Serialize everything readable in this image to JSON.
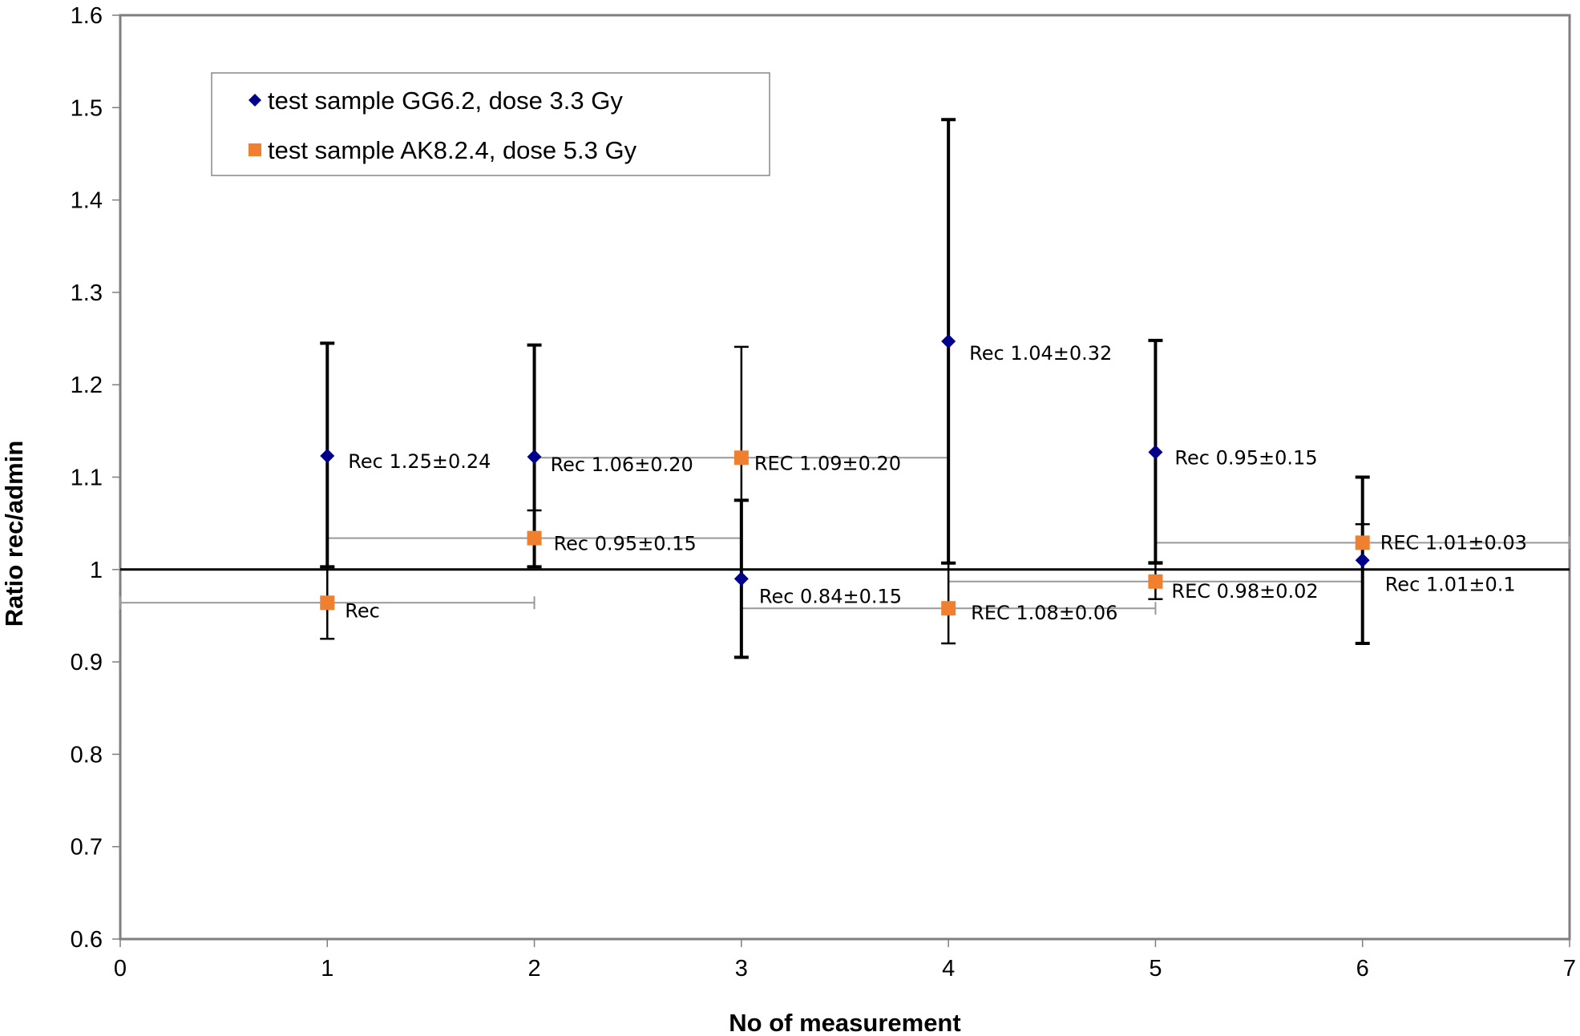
{
  "chart_data": {
    "type": "scatter",
    "title": "",
    "xlabel": "No of measurement",
    "ylabel": "Ratio rec/admin",
    "xlim": [
      0,
      7
    ],
    "ylim": [
      0.6,
      1.6
    ],
    "xticks": [
      "0",
      "1",
      "2",
      "3",
      "4",
      "5",
      "6",
      "7"
    ],
    "yticks": [
      "0.6",
      "0.7",
      "0.8",
      "0.9",
      "1",
      "1.1",
      "1.2",
      "1.3",
      "1.4",
      "1.5",
      "1.6"
    ],
    "grid": false,
    "reference_line": 1.0,
    "legend": {
      "placement": "top-left",
      "entries": [
        {
          "label": "test sample GG6.2, dose 3.3 Gy",
          "marker": "diamond",
          "color": "#00008B"
        },
        {
          "label": "test sample AK8.2.4, dose 5.3 Gy",
          "marker": "square",
          "color": "#F08030"
        }
      ]
    },
    "series": [
      {
        "name": "test sample GG6.2, dose 3.3 Gy",
        "marker": "diamond",
        "color": "#00008B",
        "x": [
          1,
          2,
          3,
          4,
          5,
          6
        ],
        "y": [
          1.123,
          1.122,
          0.99,
          1.247,
          1.127,
          1.01
        ],
        "y_err_low": [
          1.003,
          1.003,
          0.905,
          1.007,
          1.007,
          0.92
        ],
        "y_err_high": [
          1.245,
          1.243,
          1.075,
          1.487,
          1.248,
          1.1
        ],
        "annotations": [
          "Rec 1.25±0.24",
          "Rec 1.06±0.20",
          "Rec 0.84±0.15",
          "Rec 1.04±0.32",
          "Rec 0.95±0.15",
          "Rec 1.01±0.1"
        ]
      },
      {
        "name": "test sample AK8.2.4, dose 5.3 Gy",
        "marker": "square",
        "color": "#F08030",
        "x": [
          1,
          2,
          3,
          4,
          5,
          6
        ],
        "y": [
          0.964,
          1.034,
          1.121,
          0.958,
          0.987,
          1.029
        ],
        "y_err_low": [
          0.925,
          1.003,
          1.075,
          0.92,
          0.968,
          1.0
        ],
        "y_err_high": [
          1.003,
          1.064,
          1.241,
          1.007,
          1.008,
          1.049
        ],
        "x_err_low": [
          0,
          1,
          2,
          3,
          4,
          5
        ],
        "x_err_high": [
          2,
          3,
          4,
          5,
          6,
          7
        ],
        "annotations": [
          "Rec",
          "Rec 0.95±0.15",
          "REC 1.09±0.20",
          "REC 1.08±0.06",
          "REC 0.98±0.02",
          "REC 1.01±0.03"
        ]
      }
    ]
  }
}
